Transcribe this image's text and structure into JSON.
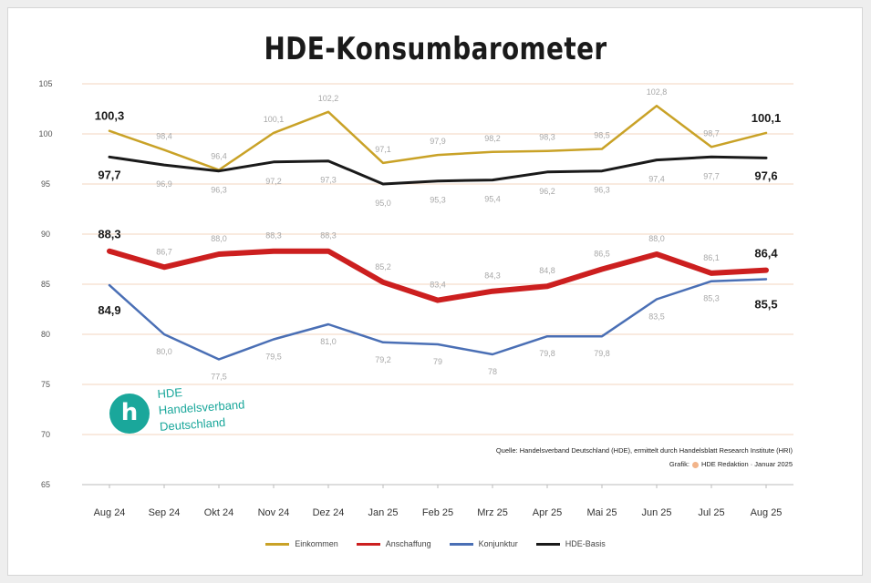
{
  "chart_data": {
    "type": "line",
    "title": "HDE-Konsumbarometer",
    "categories": [
      "Aug 24",
      "Sep 24",
      "Okt 24",
      "Nov 24",
      "Dez 24",
      "Jan 25",
      "Feb 25",
      "Mrz 25",
      "Apr 25",
      "Mai 25",
      "Jun 25",
      "Jul 25",
      "Aug 25"
    ],
    "ylim": [
      65,
      105
    ],
    "yticks": [
      65,
      70,
      75,
      80,
      85,
      90,
      95,
      100,
      105
    ],
    "grid": true,
    "legend_position": "bottom",
    "series": [
      {
        "name": "Einkommen",
        "color": "#c9a227",
        "values": [
          100.3,
          98.4,
          96.4,
          100.1,
          102.2,
          97.1,
          97.9,
          98.2,
          98.3,
          98.5,
          102.8,
          98.7,
          100.1
        ],
        "labels": [
          "100,3",
          "98,4",
          "96,4",
          "100,1",
          "102,2",
          "97,1",
          "97,9",
          "98,2",
          "98,3",
          "98,5",
          "102,8",
          "98,7",
          "100,1"
        ]
      },
      {
        "name": "Anschaffung",
        "color": "#cc1f1f",
        "values": [
          88.3,
          86.7,
          88.0,
          88.3,
          88.3,
          85.2,
          83.4,
          84.3,
          84.8,
          86.5,
          88.0,
          86.1,
          86.4
        ],
        "labels": [
          "88,3",
          "86,7",
          "88,0",
          "88,3",
          "88,3",
          "85,2",
          "83,4",
          "84,3",
          "84,8",
          "86,5",
          "88,0",
          "86,1",
          "86,4"
        ]
      },
      {
        "name": "Konjunktur",
        "color": "#4a6fb5",
        "values": [
          84.9,
          80.0,
          77.5,
          79.5,
          81.0,
          79.2,
          79.0,
          78.0,
          79.8,
          79.8,
          83.5,
          85.3,
          85.5
        ],
        "labels": [
          "84,9",
          "80,0",
          "77,5",
          "79,5",
          "81,0",
          "79,2",
          "79",
          "78",
          "79,8",
          "79,8",
          "83,5",
          "85,3",
          "85,5"
        ]
      },
      {
        "name": "HDE-Basis",
        "color": "#1a1a1a",
        "values": [
          97.7,
          96.9,
          96.3,
          97.2,
          97.3,
          95.0,
          95.3,
          95.4,
          96.2,
          96.3,
          97.4,
          97.7,
          97.6
        ],
        "labels": [
          "97,7",
          "96,9",
          "96,3",
          "97,2",
          "97,3",
          "95,0",
          "95,3",
          "95,4",
          "96,2",
          "96,3",
          "97,4",
          "97,7",
          "97,6"
        ]
      }
    ]
  },
  "logo": {
    "initial": "h",
    "lines": [
      "HDE",
      "Handelsverband",
      "Deutschland"
    ]
  },
  "source": {
    "line1": "Quelle: Handelsverband Deutschland (HDE), ermittelt durch Handelsblatt Research Institute (HRI)",
    "line2_prefix": "Grafik:",
    "line2_suffix": "HDE Redaktion · Januar 2025"
  }
}
